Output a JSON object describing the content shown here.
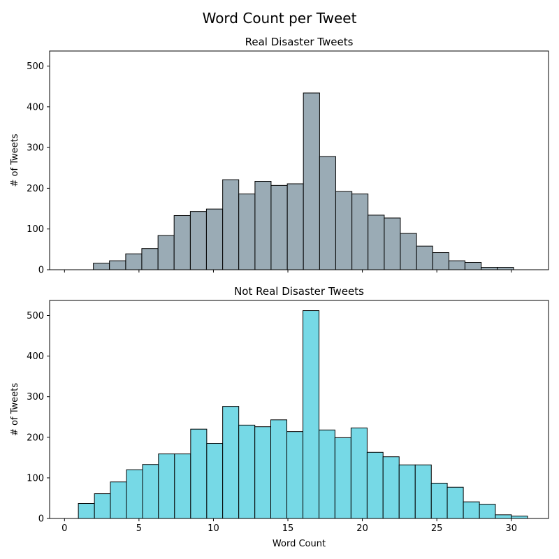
{
  "figure": {
    "title": "Word Count per Tweet"
  },
  "chart_data": [
    {
      "type": "bar",
      "title": "Real Disaster Tweets",
      "xlabel": "",
      "ylabel": "# of Tweets",
      "color": "#9aabb5",
      "edge_color": "#000000",
      "xlim": [
        -1,
        32.5
      ],
      "ylim": [
        0,
        537
      ],
      "xticks": [
        0,
        5,
        10,
        15,
        20,
        25,
        30
      ],
      "xtick_labels_shown": false,
      "yticks": [
        0,
        100,
        200,
        300,
        400,
        500
      ],
      "bins": [
        {
          "x0": 1.94,
          "x1": 3.02,
          "count": 16
        },
        {
          "x0": 3.02,
          "x1": 4.11,
          "count": 22
        },
        {
          "x0": 4.11,
          "x1": 5.19,
          "count": 39
        },
        {
          "x0": 5.19,
          "x1": 6.28,
          "count": 52
        },
        {
          "x0": 6.28,
          "x1": 7.36,
          "count": 84
        },
        {
          "x0": 7.36,
          "x1": 8.45,
          "count": 133
        },
        {
          "x0": 8.45,
          "x1": 9.53,
          "count": 143
        },
        {
          "x0": 9.53,
          "x1": 10.62,
          "count": 149
        },
        {
          "x0": 10.62,
          "x1": 11.7,
          "count": 221
        },
        {
          "x0": 11.7,
          "x1": 12.79,
          "count": 186
        },
        {
          "x0": 12.79,
          "x1": 13.87,
          "count": 217
        },
        {
          "x0": 13.87,
          "x1": 14.96,
          "count": 207
        },
        {
          "x0": 14.96,
          "x1": 16.04,
          "count": 211
        },
        {
          "x0": 16.04,
          "x1": 17.13,
          "count": 434
        },
        {
          "x0": 17.13,
          "x1": 18.21,
          "count": 278
        },
        {
          "x0": 18.21,
          "x1": 19.3,
          "count": 192
        },
        {
          "x0": 19.3,
          "x1": 20.38,
          "count": 186
        },
        {
          "x0": 20.38,
          "x1": 21.47,
          "count": 134
        },
        {
          "x0": 21.47,
          "x1": 22.55,
          "count": 127
        },
        {
          "x0": 22.55,
          "x1": 23.64,
          "count": 89
        },
        {
          "x0": 23.64,
          "x1": 24.72,
          "count": 58
        },
        {
          "x0": 24.72,
          "x1": 25.81,
          "count": 42
        },
        {
          "x0": 25.81,
          "x1": 26.89,
          "count": 22
        },
        {
          "x0": 26.89,
          "x1": 27.98,
          "count": 18
        },
        {
          "x0": 27.98,
          "x1": 29.06,
          "count": 6
        },
        {
          "x0": 29.06,
          "x1": 30.15,
          "count": 6
        }
      ]
    },
    {
      "type": "bar",
      "title": "Not Real Disaster Tweets",
      "xlabel": "Word Count",
      "ylabel": "# of Tweets",
      "color": "#76d9e6",
      "edge_color": "#000000",
      "xlim": [
        -1,
        32.5
      ],
      "ylim": [
        0,
        537
      ],
      "xticks": [
        0,
        5,
        10,
        15,
        20,
        25,
        30
      ],
      "xtick_labels_shown": true,
      "yticks": [
        0,
        100,
        200,
        300,
        400,
        500
      ],
      "bins": [
        {
          "x0": 0.93,
          "x1": 2.01,
          "count": 37
        },
        {
          "x0": 2.01,
          "x1": 3.08,
          "count": 61
        },
        {
          "x0": 3.08,
          "x1": 4.16,
          "count": 90
        },
        {
          "x0": 4.16,
          "x1": 5.24,
          "count": 120
        },
        {
          "x0": 5.24,
          "x1": 6.31,
          "count": 133
        },
        {
          "x0": 6.31,
          "x1": 7.39,
          "count": 159
        },
        {
          "x0": 7.39,
          "x1": 8.47,
          "count": 159
        },
        {
          "x0": 8.47,
          "x1": 9.55,
          "count": 220
        },
        {
          "x0": 9.55,
          "x1": 10.62,
          "count": 185
        },
        {
          "x0": 10.62,
          "x1": 11.7,
          "count": 276
        },
        {
          "x0": 11.7,
          "x1": 12.78,
          "count": 230
        },
        {
          "x0": 12.78,
          "x1": 13.85,
          "count": 226
        },
        {
          "x0": 13.85,
          "x1": 14.93,
          "count": 243
        },
        {
          "x0": 14.93,
          "x1": 16.01,
          "count": 214
        },
        {
          "x0": 16.01,
          "x1": 17.09,
          "count": 512
        },
        {
          "x0": 17.09,
          "x1": 18.16,
          "count": 218
        },
        {
          "x0": 18.16,
          "x1": 19.24,
          "count": 199
        },
        {
          "x0": 19.24,
          "x1": 20.32,
          "count": 223
        },
        {
          "x0": 20.32,
          "x1": 21.39,
          "count": 163
        },
        {
          "x0": 21.39,
          "x1": 22.47,
          "count": 152
        },
        {
          "x0": 22.47,
          "x1": 23.55,
          "count": 132
        },
        {
          "x0": 23.55,
          "x1": 24.63,
          "count": 132
        },
        {
          "x0": 24.63,
          "x1": 25.7,
          "count": 87
        },
        {
          "x0": 25.7,
          "x1": 26.78,
          "count": 77
        },
        {
          "x0": 26.78,
          "x1": 27.86,
          "count": 41
        },
        {
          "x0": 27.86,
          "x1": 28.93,
          "count": 35
        },
        {
          "x0": 28.93,
          "x1": 30.01,
          "count": 9
        },
        {
          "x0": 30.01,
          "x1": 31.09,
          "count": 6
        }
      ]
    }
  ]
}
